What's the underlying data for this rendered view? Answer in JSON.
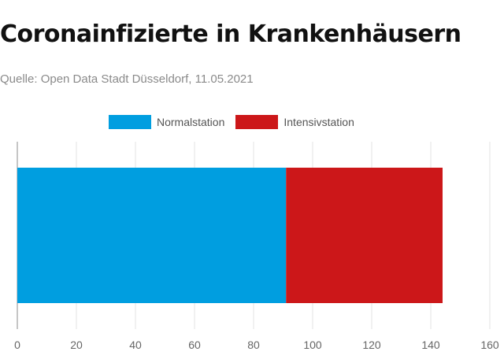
{
  "title": "Coronainfizierte in Krankenhäusern",
  "subtitle": "Quelle: Open Data Stadt Düsseldorf, 11.05.2021",
  "chart_data": {
    "type": "bar",
    "orientation": "horizontal",
    "stacked": true,
    "categories": [
      ""
    ],
    "series": [
      {
        "name": "Normalstation",
        "values": [
          91
        ],
        "color": "#009ee0"
      },
      {
        "name": "Intensivstation",
        "values": [
          53
        ],
        "color": "#cc1719"
      }
    ],
    "xlim": [
      0,
      160
    ],
    "xticks": [
      0,
      20,
      40,
      60,
      80,
      100,
      120,
      140,
      160
    ],
    "grid": true,
    "legend_position": "top"
  }
}
